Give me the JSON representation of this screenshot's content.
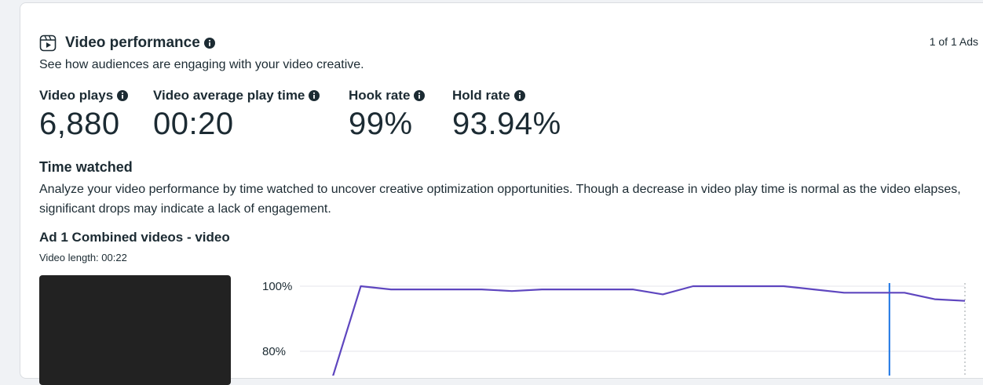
{
  "colors": {
    "accent_line": "#5e46bf",
    "marker_line": "#1b74e4"
  },
  "header": {
    "icon": "reel-play-icon",
    "title": "Video performance",
    "subtitle": "See how audiences are engaging with your video creative.",
    "pager": "1 of 1 Ads"
  },
  "metrics": [
    {
      "label": "Video plays",
      "value": "6,880"
    },
    {
      "label": "Video average play time",
      "value": "00:20"
    },
    {
      "label": "Hook rate",
      "value": "99%"
    },
    {
      "label": "Hold rate",
      "value": "93.94%"
    }
  ],
  "time_watched": {
    "title": "Time watched",
    "description": "Analyze your video performance by time watched to uncover creative optimization opportunities. Though a decrease in video play time is normal as the video elapses, significant drops may indicate a lack of engagement."
  },
  "ad": {
    "title": "Ad 1 Combined videos - video",
    "length": "Video length: 00:22"
  },
  "chart_data": {
    "type": "line",
    "title": "",
    "xlabel": "",
    "ylabel": "",
    "y_tick_labels": [
      "100%",
      "80%"
    ],
    "ylim_visible": [
      74,
      100
    ],
    "series": [
      {
        "values": [
          70,
          100,
          99,
          99,
          99,
          99,
          98.5,
          99,
          99,
          99,
          99,
          97.5,
          100,
          100,
          100,
          100,
          99,
          98,
          98,
          98,
          96,
          95.5
        ]
      }
    ],
    "x": [
      0,
      1,
      2,
      3,
      4,
      5,
      6,
      7,
      8,
      9,
      10,
      11,
      12,
      13,
      14,
      15,
      16,
      17,
      18,
      19,
      20,
      21
    ],
    "marker_x": 18.5,
    "grid": true
  }
}
